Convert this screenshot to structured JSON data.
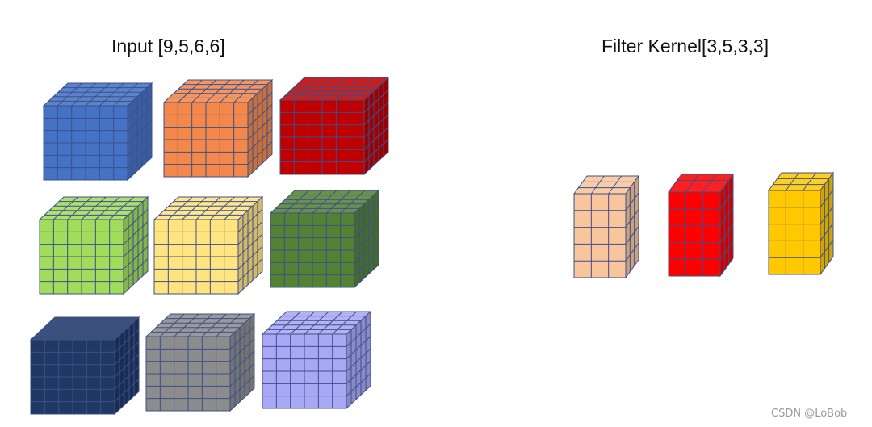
{
  "input": {
    "title": "Input [9,5,6,6]",
    "cubes": [
      {
        "name": "input-cube-blue",
        "color": "#4472c4",
        "cols": 6,
        "rows": 6,
        "depth": 5
      },
      {
        "name": "input-cube-orange",
        "color": "#f4884a",
        "cols": 6,
        "rows": 6,
        "depth": 5
      },
      {
        "name": "input-cube-red",
        "color": "#c00000",
        "cols": 6,
        "rows": 6,
        "depth": 5
      },
      {
        "name": "input-cube-light-green",
        "color": "#a2dc5b",
        "cols": 6,
        "rows": 6,
        "depth": 5
      },
      {
        "name": "input-cube-light-yellow",
        "color": "#ffe480",
        "cols": 6,
        "rows": 6,
        "depth": 5
      },
      {
        "name": "input-cube-dark-green",
        "color": "#548235",
        "cols": 6,
        "rows": 6,
        "depth": 5
      },
      {
        "name": "input-cube-navy",
        "color": "#203864",
        "cols": 6,
        "rows": 6,
        "depth": 5
      },
      {
        "name": "input-cube-gray",
        "color": "#8c8c8c",
        "cols": 6,
        "rows": 6,
        "depth": 5
      },
      {
        "name": "input-cube-lavender",
        "color": "#a9a8f5",
        "cols": 6,
        "rows": 6,
        "depth": 5
      }
    ]
  },
  "filter": {
    "title": "Filter Kernel[3,5,3,3]",
    "cubes": [
      {
        "name": "filter-cube-peach",
        "color": "#f8c59c",
        "cols": 3,
        "rows": 5,
        "depth": 3
      },
      {
        "name": "filter-cube-red",
        "color": "#ff0000",
        "cols": 3,
        "rows": 5,
        "depth": 3
      },
      {
        "name": "filter-cube-yellow",
        "color": "#ffc800",
        "cols": 3,
        "rows": 5,
        "depth": 3
      }
    ]
  },
  "watermark": "CSDN @LoBob",
  "edge_color": "#3d4f8a"
}
